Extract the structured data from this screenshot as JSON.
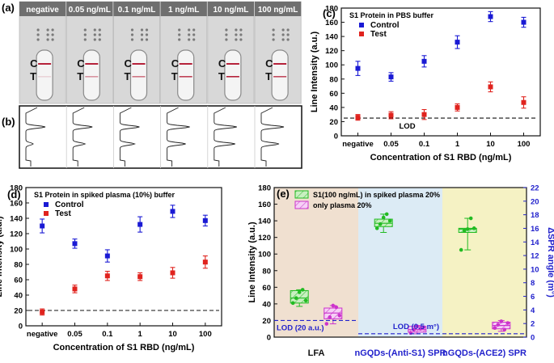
{
  "panel_labels": {
    "a": "(a)",
    "b": "(b)",
    "c": "(c)",
    "d": "(d)",
    "e": "(e)"
  },
  "strips": {
    "labels": [
      "negative",
      "0.05 ng/mL",
      "0.1 ng/mL",
      "1 ng/mL",
      "10 ng/mL",
      "100 ng/mL"
    ],
    "ct_c": "C",
    "ct_t": "T",
    "test_line_strength": [
      0.15,
      0.45,
      0.6,
      0.85,
      1.0,
      0.8
    ]
  },
  "chart_data": [
    {
      "id": "c",
      "type": "scatter",
      "title": "S1 Protein in PBS buffer",
      "xlabel": "Concentration of S1 RBD (ng/mL)",
      "ylabel": "Line Intensity (a.u.)",
      "categories": [
        "negative",
        "0.05",
        "0.1",
        "1",
        "10",
        "100"
      ],
      "ylim": [
        0,
        180
      ],
      "yticks": [
        "0",
        "20",
        "40",
        "60",
        "80",
        "100",
        "120",
        "140",
        "160",
        "180"
      ],
      "series": [
        {
          "name": "Control",
          "color": "#1a1ad4",
          "marker": "square",
          "values": [
            95,
            83,
            105,
            132,
            168,
            160
          ],
          "errors": [
            10,
            6,
            8,
            9,
            7,
            7
          ]
        },
        {
          "name": "Test",
          "color": "#e0231e",
          "marker": "square",
          "values": [
            26,
            29,
            30,
            40,
            69,
            47
          ],
          "errors": [
            4,
            5,
            7,
            5,
            7,
            8
          ]
        }
      ],
      "lod": {
        "value": 25,
        "label": "LOD"
      },
      "legend": "top-left"
    },
    {
      "id": "d",
      "type": "scatter",
      "title": "S1 Protein in spiked plasma (10%) buffer",
      "xlabel": "Concentration of S1 RBD (ng/mL)",
      "ylabel": "Line Intensity (a.u.)",
      "categories": [
        "negative",
        "0.05",
        "0.1",
        "1",
        "10",
        "100"
      ],
      "ylim": [
        0,
        180
      ],
      "yticks": [
        "0",
        "20",
        "40",
        "60",
        "80",
        "100",
        "120",
        "140",
        "160",
        "180"
      ],
      "series": [
        {
          "name": "Control",
          "color": "#1a1ad4",
          "marker": "square",
          "values": [
            130,
            107,
            91,
            132,
            149,
            137
          ],
          "errors": [
            9,
            6,
            8,
            10,
            8,
            7
          ]
        },
        {
          "name": "Test",
          "color": "#e0231e",
          "marker": "square",
          "values": [
            18,
            48,
            65,
            64,
            69,
            83
          ],
          "errors": [
            4,
            5,
            6,
            5,
            7,
            8
          ]
        }
      ],
      "lod": {
        "value": 20,
        "label": ""
      },
      "legend": "top-left"
    },
    {
      "id": "e",
      "type": "box",
      "xlabel": "",
      "ylabel": "Line Intensity (a.u.)",
      "ylabel_right": "ΔSPR angle (m°)",
      "ylim": [
        0,
        180
      ],
      "yticks": [
        "0",
        "20",
        "40",
        "60",
        "80",
        "100",
        "120",
        "140",
        "160",
        "180"
      ],
      "ylim_right": [
        0,
        22
      ],
      "yticks_right": [
        "0",
        "2",
        "4",
        "6",
        "8",
        "10",
        "12",
        "14",
        "16",
        "18",
        "20",
        "22"
      ],
      "groups": [
        "LFA",
        "nGQDs-(Anti-S1) SPR",
        "nGQDs-(ACE2) SPR"
      ],
      "group_colors": [
        "#f0e0d0",
        "#dcebf5",
        "#f5f2c4"
      ],
      "legend_entries": [
        "S1(100 ng/mL) in spiked plasma 20%",
        "only plasma 20%"
      ],
      "series": [
        {
          "name": "S1(100 ng/mL) in spiked plasma 20%",
          "color": "#22bb22",
          "hatch": "#66cc66",
          "boxes": [
            {
              "group": 0,
              "q1": 41,
              "median": 47,
              "q3": 56,
              "min": 37,
              "max": 57,
              "points": [
                41,
                47,
                54,
                57,
                44
              ]
            },
            {
              "group": 1,
              "q1": 133,
              "median": 137,
              "q3": 142,
              "min": 126,
              "max": 148,
              "points": [
                131,
                136,
                144,
                148,
                140
              ]
            },
            {
              "group": 2,
              "q1": 126,
              "median": 130,
              "q3": 131,
              "min": 105,
              "max": 143,
              "points": [
                105,
                128,
                130,
                143,
                131
              ]
            }
          ]
        },
        {
          "name": "only plasma 20%",
          "color": "#cc33cc",
          "hatch": "#e07ae0",
          "boxes": [
            {
              "group": 0,
              "q1": 22,
              "median": 29,
              "q3": 35,
              "min": 16,
              "max": 38,
              "points": [
                16,
                24,
                38,
                36,
                26
              ]
            },
            {
              "group": 1,
              "q1": 6,
              "median": 9,
              "q3": 13,
              "min": 4,
              "max": 14,
              "points": [
                5,
                9,
                13,
                10,
                12
              ]
            },
            {
              "group": 2,
              "q1": 10,
              "median": 14,
              "q3": 18,
              "min": 7,
              "max": 20,
              "points": [
                11,
                15,
                19,
                9,
                17
              ]
            }
          ]
        }
      ],
      "lod_left": {
        "value": 20,
        "label": "LOD (20 a.u.)"
      },
      "lod_right": {
        "value": 0.5,
        "label": "LOD (0.5 m°)"
      }
    }
  ]
}
